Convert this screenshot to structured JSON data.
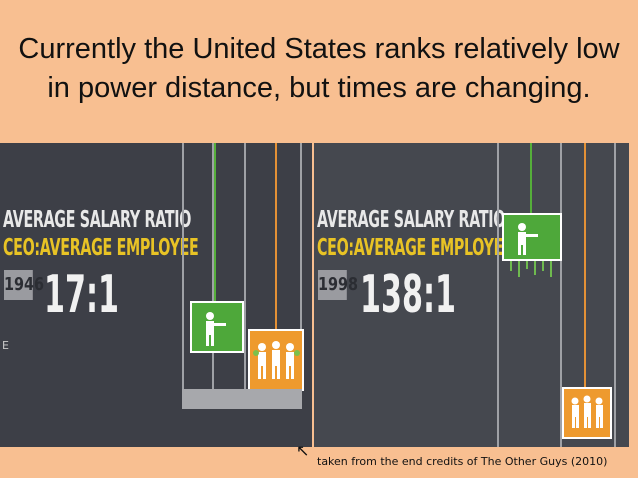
{
  "slide": {
    "title": "Currently the United States ranks relatively low in power distance, but times are changing.",
    "caption": "taken from the end credits of The Other Guys (2010)"
  },
  "left_panel": {
    "heading_line1": "AVERAGE SALARY RATIO",
    "heading_line2": "CEO:AVERAGE EMPLOYEE",
    "year": "1946",
    "ratio": "17:1",
    "edge_text": "E"
  },
  "right_panel": {
    "heading_line1": "AVERAGE SALARY RATIO",
    "heading_line2": "CEO:AVERAGE EMPLOYEE",
    "year": "1998",
    "ratio": "138:1"
  },
  "colors": {
    "slide_bg": "#F8BF91",
    "panel_bg": "#3D3F47",
    "heading_white": "#E8E8E8",
    "heading_yellow": "#E8C325",
    "ceo_green": "#4EA83A",
    "employee_orange": "#EE9A2E"
  },
  "icons": {
    "ceo_figure": "person-icon",
    "employee_figures": "group-icon",
    "pointer": "arrow-up-left-icon"
  }
}
